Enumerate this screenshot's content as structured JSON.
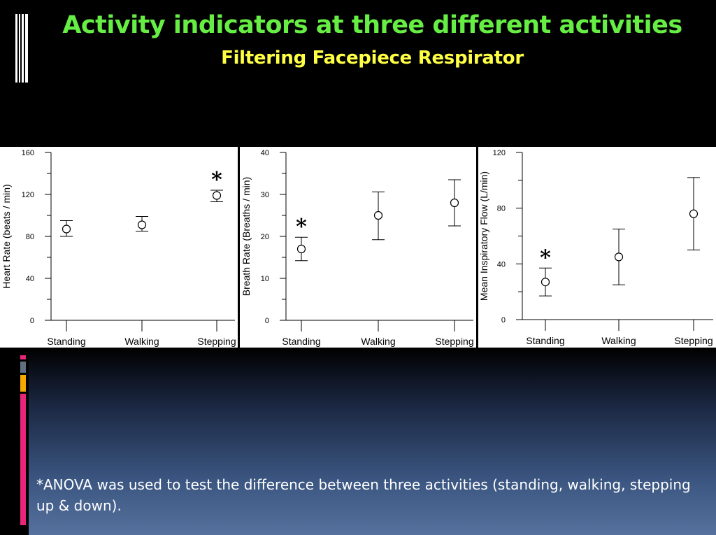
{
  "slide": {
    "title": "Activity indicators at three different activities",
    "subtitle": "Filtering Facepiece Respirator",
    "footnote": "*ANOVA was used to test the difference between three activities (standing, walking, stepping up & down).",
    "colors": {
      "title": "#66ee44",
      "subtitle": "#ffff44",
      "accent_pink": "#e8257a",
      "accent_gray": "#607080",
      "accent_orange": "#f5a800"
    }
  },
  "chart_data": [
    {
      "type": "scatter",
      "categories": [
        "Standing",
        "Walking",
        "Stepping"
      ],
      "ylabel": "Heart Rate (beats / min)",
      "ylim": [
        0,
        160
      ],
      "yticks": [
        0,
        40,
        80,
        120,
        160
      ],
      "series": [
        {
          "means": [
            87,
            91,
            119
          ],
          "err_low": [
            80,
            85,
            113
          ],
          "err_high": [
            95,
            99,
            124
          ]
        }
      ],
      "significance": [
        false,
        false,
        true
      ],
      "significance_marker": "*"
    },
    {
      "type": "scatter",
      "categories": [
        "Standing",
        "Walking",
        "Stepping"
      ],
      "ylabel": "Breath Rate (Breaths / min)",
      "ylim": [
        0,
        40
      ],
      "yticks": [
        0,
        10,
        20,
        30,
        40
      ],
      "series": [
        {
          "means": [
            17,
            25,
            28
          ],
          "err_low": [
            14.2,
            19.2,
            22.5
          ],
          "err_high": [
            19.8,
            30.6,
            33.5
          ]
        }
      ],
      "significance": [
        true,
        false,
        false
      ],
      "significance_marker": "*"
    },
    {
      "type": "scatter",
      "categories": [
        "Standing",
        "Walking",
        "Stepping"
      ],
      "ylabel": "Mean Inspiratory Flow (L/min)",
      "ylim": [
        0,
        120
      ],
      "yticks": [
        0,
        40,
        80,
        120
      ],
      "series": [
        {
          "means": [
            27,
            45,
            76
          ],
          "err_low": [
            17,
            25,
            50
          ],
          "err_high": [
            37,
            65,
            102
          ]
        }
      ],
      "significance": [
        true,
        false,
        false
      ],
      "significance_marker": "*"
    }
  ]
}
